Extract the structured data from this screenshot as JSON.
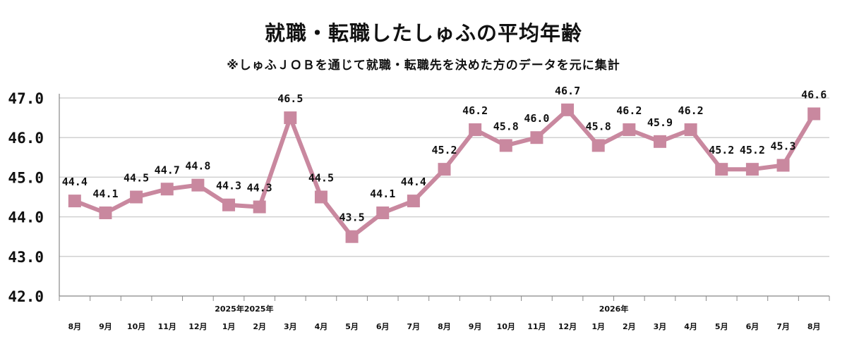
{
  "chart_data": {
    "type": "line",
    "title": "就職・転職したしゅふの平均年齢",
    "subtitle": "※しゅふＪＯＢを通じて就職・転職先を決めた方のデータを元に集計",
    "categories": [
      "8月",
      "9月",
      "10月",
      "11月",
      "12月",
      "1月",
      "2月",
      "3月",
      "4月",
      "5月",
      "6月",
      "7月",
      "8月",
      "9月",
      "10月",
      "11月",
      "12月",
      "1月",
      "2月",
      "3月",
      "4月",
      "5月",
      "6月",
      "7月",
      "8月"
    ],
    "year_labels": [
      {
        "text": "2025年2025年",
        "index": 5.5
      },
      {
        "text": "2026年",
        "index": 17.5
      }
    ],
    "series": [
      {
        "values": [
          44.4,
          44.1,
          44.5,
          44.7,
          44.8,
          44.3,
          44.25,
          46.5,
          44.5,
          43.5,
          44.1,
          44.4,
          45.2,
          46.2,
          45.8,
          46.0,
          46.7,
          45.8,
          46.2,
          45.9,
          46.2,
          45.2,
          45.2,
          45.3,
          46.6
        ],
        "labels": [
          "44.4",
          "44.1",
          "44.5",
          "44.7",
          "44.8",
          "44.3",
          "44.3",
          "46.5",
          "44.5",
          "43.5",
          "44.1",
          "44.4",
          "45.2",
          "46.2",
          "45.8",
          "46.0",
          "46.7",
          "45.8",
          "46.2",
          "45.9",
          "46.2",
          "45.2",
          "45.2",
          "45.3",
          "46.6"
        ],
        "color": "#c9889f"
      }
    ],
    "y_ticks": [
      "42.0",
      "43.0",
      "44.0",
      "45.0",
      "46.0",
      "47.0"
    ],
    "ylim": [
      42.0,
      47.0
    ],
    "grid": true,
    "legend": "none"
  }
}
